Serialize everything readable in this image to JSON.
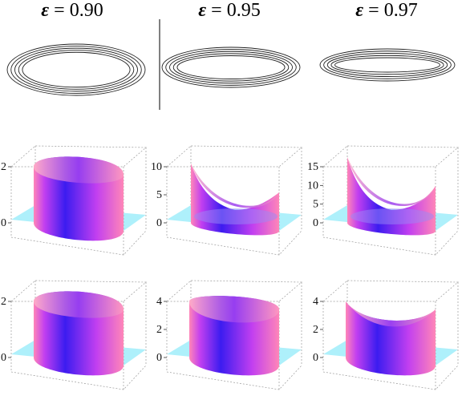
{
  "columns": [
    {
      "epsilon_symbol": "ε",
      "equals": "=",
      "value": "0.90"
    },
    {
      "epsilon_symbol": "ε",
      "equals": "=",
      "value": "0.95"
    },
    {
      "epsilon_symbol": "ε",
      "equals": "=",
      "value": "0.97"
    }
  ],
  "rows": [
    {
      "kind": "orbit-contours"
    },
    {
      "kind": "surface-plot",
      "panels": [
        {
          "ticks": [
            "0",
            "2"
          ],
          "shape": "wall"
        },
        {
          "ticks": [
            "0",
            "5",
            "10"
          ],
          "shape": "peaks"
        },
        {
          "ticks": [
            "0",
            "5",
            "10",
            "15"
          ],
          "shape": "peaks-sharp"
        }
      ]
    },
    {
      "kind": "surface-plot",
      "panels": [
        {
          "ticks": [
            "0",
            "2"
          ],
          "shape": "wall"
        },
        {
          "ticks": [
            "0",
            "2",
            "4"
          ],
          "shape": "wall-sag"
        },
        {
          "ticks": [
            "0",
            "2",
            "4"
          ],
          "shape": "saddle"
        }
      ]
    }
  ],
  "colors": {
    "floor": "#aef0fb",
    "surface_light": "#ff86b8",
    "surface_mid": "#c23ff0",
    "surface_dark": "#3c1cf0",
    "frame": "#9a9a9a",
    "divider": "#000000"
  }
}
